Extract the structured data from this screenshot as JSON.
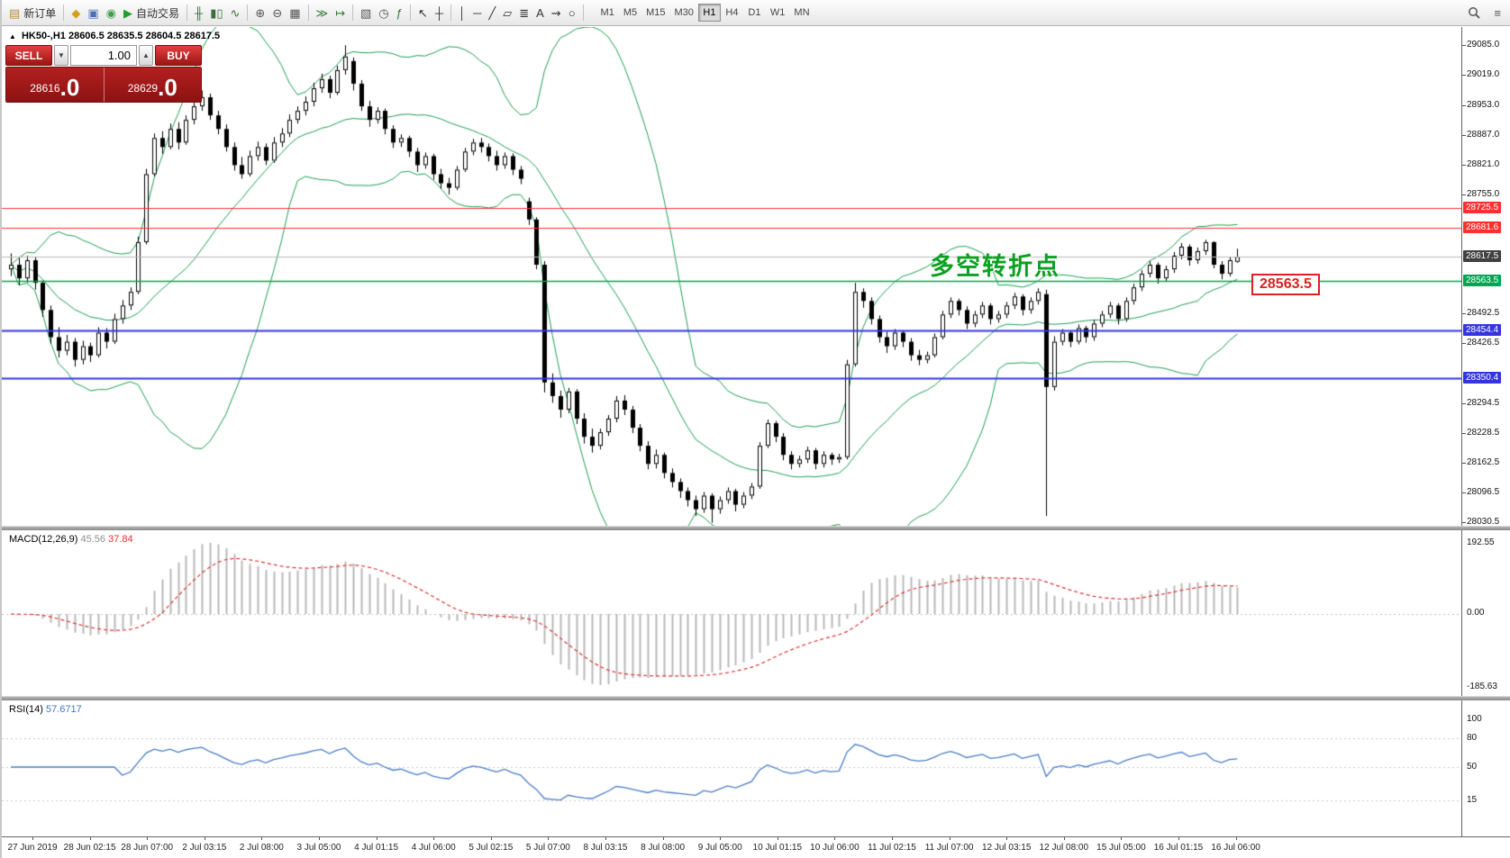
{
  "toolbar": {
    "items": [
      {
        "name": "new-order-button",
        "glyph": "▤",
        "glyph_color": "#b98a2f",
        "label": "新订单"
      },
      {
        "sep": true
      },
      {
        "name": "alerts-icon",
        "glyph": "◆",
        "glyph_color": "#d4a017"
      },
      {
        "name": "mailbox-icon",
        "glyph": "▣",
        "glyph_color": "#4a6fb5"
      },
      {
        "name": "community-icon",
        "glyph": "◉",
        "glyph_color": "#3f9e4d"
      },
      {
        "name": "autotrading-button",
        "glyph": "▶",
        "glyph_color": "#1f9e2e",
        "label": "自动交易"
      },
      {
        "sep": true
      },
      {
        "name": "bar-chart-style-icon",
        "glyph": "╫",
        "glyph_color": "#3a6f3a"
      },
      {
        "name": "candlestick-style-icon",
        "glyph": "▮▯",
        "glyph_color": "#3a6f3a"
      },
      {
        "name": "line-chart-style-icon",
        "glyph": "∿",
        "glyph_color": "#3a6f3a"
      },
      {
        "sep": true
      },
      {
        "name": "zoom-in-icon",
        "glyph": "⊕",
        "glyph_color": "#555555"
      },
      {
        "name": "zoom-out-icon",
        "glyph": "⊖",
        "glyph_color": "#555555"
      },
      {
        "name": "tile-windows-icon",
        "glyph": "▦",
        "glyph_color": "#555555"
      },
      {
        "sep": true
      },
      {
        "name": "auto-scroll-icon",
        "glyph": "≫",
        "glyph_color": "#2e7d32"
      },
      {
        "name": "chart-shift-icon",
        "glyph": "↦",
        "glyph_color": "#2e7d32"
      },
      {
        "sep": true
      },
      {
        "name": "new-chart-icon",
        "glyph": "▧",
        "glyph_color": "#555555"
      },
      {
        "name": "period-icon",
        "glyph": "◷",
        "glyph_color": "#555555"
      },
      {
        "name": "indicators-icon",
        "glyph": "ƒ",
        "glyph_color": "#2e7d32"
      },
      {
        "sep": true
      },
      {
        "name": "cursor-icon",
        "glyph": "↖",
        "glyph_color": "#333333"
      },
      {
        "name": "crosshair-icon",
        "glyph": "┼",
        "glyph_color": "#333333"
      },
      {
        "sep": true
      },
      {
        "name": "vertical-line-icon",
        "glyph": "│",
        "glyph_color": "#333333"
      },
      {
        "name": "horizontal-line-icon",
        "glyph": "─",
        "glyph_color": "#333333"
      },
      {
        "name": "trendline-icon",
        "glyph": "╱",
        "glyph_color": "#333333"
      },
      {
        "name": "channel-icon",
        "glyph": "▱",
        "glyph_color": "#333333"
      },
      {
        "name": "fibonacci-icon",
        "glyph": "≣",
        "glyph_color": "#333333"
      },
      {
        "name": "text-icon",
        "glyph": "A",
        "glyph_color": "#333333"
      },
      {
        "name": "arrows-icon",
        "glyph": "⇝",
        "glyph_color": "#333333"
      },
      {
        "name": "shapes-icon",
        "glyph": "○",
        "glyph_color": "#333333"
      },
      {
        "sep": true
      }
    ],
    "timeframes": [
      "M1",
      "M5",
      "M15",
      "M30",
      "H1",
      "H4",
      "D1",
      "W1",
      "MN"
    ],
    "active_timeframe": "H1",
    "menu_glyph": "≡"
  },
  "symbol_info": {
    "marker": "▲",
    "symbol": "HK50-,H1",
    "ohlc": "28606.5 28635.5 28604.5 28617.5"
  },
  "trade_panel": {
    "sell_label": "SELL",
    "buy_label": "BUY",
    "volume": "1.00",
    "down_glyph": "▼",
    "up_glyph": "▲",
    "sell_price": "28616",
    "sell_price_frac": ".0",
    "buy_price": "28629",
    "buy_price_frac": ".0"
  },
  "annotation": {
    "text": "多空转折点",
    "color": "#0aa121"
  },
  "price_tag": {
    "text": "28563.5",
    "color": "#e02020"
  },
  "macd_panel": {
    "label": "MACD(12,26,9)",
    "value_hist": "45.56",
    "value_signal": "37.84"
  },
  "rsi_panel": {
    "label": "RSI(14)",
    "value": "57.6717"
  },
  "chart_data": {
    "type": "candlestick",
    "symbol": "HK50-",
    "timeframe": "H1",
    "title": "HK50- Hong Kong 50 Index H1 chart with Bollinger Bands, MACD and RSI",
    "price_range": [
      28030.5,
      29085.0
    ],
    "ohlc": [
      [
        28590,
        28625,
        28575,
        28600
      ],
      [
        28600,
        28615,
        28555,
        28570
      ],
      [
        28570,
        28620,
        28560,
        28610
      ],
      [
        28610,
        28618,
        28545,
        28560
      ],
      [
        28560,
        28565,
        28485,
        28500
      ],
      [
        28500,
        28510,
        28425,
        28440
      ],
      [
        28440,
        28462,
        28395,
        28410
      ],
      [
        28410,
        28445,
        28400,
        28430
      ],
      [
        28430,
        28438,
        28375,
        28390
      ],
      [
        28390,
        28432,
        28380,
        28420
      ],
      [
        28420,
        28428,
        28385,
        28400
      ],
      [
        28400,
        28462,
        28395,
        28450
      ],
      [
        28450,
        28460,
        28415,
        28430
      ],
      [
        28430,
        28492,
        28425,
        28480
      ],
      [
        28480,
        28522,
        28470,
        28510
      ],
      [
        28510,
        28550,
        28500,
        28540
      ],
      [
        28540,
        28662,
        28535,
        28650
      ],
      [
        28650,
        28812,
        28645,
        28800
      ],
      [
        28800,
        28890,
        28795,
        28880
      ],
      [
        28880,
        28895,
        28845,
        28860
      ],
      [
        28860,
        28912,
        28855,
        28900
      ],
      [
        28900,
        28915,
        28855,
        28870
      ],
      [
        28870,
        28930,
        28865,
        28920
      ],
      [
        28920,
        28962,
        28910,
        28950
      ],
      [
        28950,
        28985,
        28940,
        28970
      ],
      [
        28970,
        28978,
        28920,
        28930
      ],
      [
        28930,
        28940,
        28888,
        28900
      ],
      [
        28900,
        28910,
        28850,
        28860
      ],
      [
        28860,
        28870,
        28808,
        28820
      ],
      [
        28820,
        28838,
        28790,
        28800
      ],
      [
        28800,
        28852,
        28795,
        28840
      ],
      [
        28840,
        28872,
        28830,
        28860
      ],
      [
        28860,
        28868,
        28820,
        28830
      ],
      [
        28830,
        28882,
        28825,
        28870
      ],
      [
        28870,
        28902,
        28860,
        28890
      ],
      [
        28890,
        28932,
        28882,
        28920
      ],
      [
        28920,
        28950,
        28912,
        28940
      ],
      [
        28940,
        28972,
        28930,
        28960
      ],
      [
        28960,
        29002,
        28950,
        28990
      ],
      [
        28990,
        29022,
        28980,
        29010
      ],
      [
        29010,
        29018,
        28968,
        28980
      ],
      [
        28980,
        29040,
        28975,
        29030
      ],
      [
        29030,
        29085,
        29020,
        29060
      ],
      [
        29050,
        29058,
        28985,
        29000
      ],
      [
        29000,
        29008,
        28940,
        28950
      ],
      [
        28950,
        28962,
        28905,
        28920
      ],
      [
        28920,
        28948,
        28912,
        28940
      ],
      [
        28940,
        28945,
        28888,
        28900
      ],
      [
        28900,
        28908,
        28858,
        28870
      ],
      [
        28870,
        28888,
        28860,
        28880
      ],
      [
        28880,
        28885,
        28838,
        28850
      ],
      [
        28850,
        28858,
        28805,
        28820
      ],
      [
        28820,
        28848,
        28812,
        28840
      ],
      [
        28840,
        28845,
        28788,
        28800
      ],
      [
        28800,
        28812,
        28768,
        28780
      ],
      [
        28780,
        28792,
        28755,
        28770
      ],
      [
        28770,
        28818,
        28765,
        28810
      ],
      [
        28810,
        28858,
        28805,
        28850
      ],
      [
        28850,
        28878,
        28842,
        28870
      ],
      [
        28870,
        28880,
        28848,
        28860
      ],
      [
        28860,
        28868,
        28828,
        28840
      ],
      [
        28840,
        28852,
        28808,
        28820
      ],
      [
        28820,
        28848,
        28812,
        28840
      ],
      [
        28840,
        28846,
        28798,
        28810
      ],
      [
        28810,
        28818,
        28778,
        28790
      ],
      [
        28740,
        28748,
        28688,
        28700
      ],
      [
        28700,
        28705,
        28590,
        28600
      ],
      [
        28600,
        28608,
        28318,
        28340
      ],
      [
        28340,
        28360,
        28295,
        28310
      ],
      [
        28310,
        28322,
        28262,
        28280
      ],
      [
        28280,
        28328,
        28272,
        28320
      ],
      [
        28320,
        28325,
        28248,
        28260
      ],
      [
        28260,
        28272,
        28205,
        28220
      ],
      [
        28220,
        28238,
        28185,
        28200
      ],
      [
        28200,
        28238,
        28192,
        28230
      ],
      [
        28230,
        28268,
        28222,
        28260
      ],
      [
        28260,
        28310,
        28252,
        28300
      ],
      [
        28300,
        28312,
        28268,
        28280
      ],
      [
        28280,
        28288,
        28228,
        28240
      ],
      [
        28240,
        28248,
        28188,
        28200
      ],
      [
        28200,
        28210,
        28148,
        28160
      ],
      [
        28160,
        28192,
        28150,
        28180
      ],
      [
        28180,
        28185,
        28128,
        28140
      ],
      [
        28140,
        28150,
        28108,
        28120
      ],
      [
        28120,
        28128,
        28085,
        28100
      ],
      [
        28100,
        28108,
        28066,
        28080
      ],
      [
        28080,
        28090,
        28045,
        28060
      ],
      [
        28060,
        28098,
        28052,
        28090
      ],
      [
        28090,
        28095,
        28030,
        28060
      ],
      [
        28060,
        28088,
        28050,
        28080
      ],
      [
        28080,
        28108,
        28072,
        28100
      ],
      [
        28100,
        28105,
        28055,
        28070
      ],
      [
        28070,
        28098,
        28062,
        28090
      ],
      [
        28090,
        28118,
        28082,
        28110
      ],
      [
        28110,
        28208,
        28105,
        28200
      ],
      [
        28200,
        28258,
        28195,
        28250
      ],
      [
        28250,
        28255,
        28208,
        28220
      ],
      [
        28220,
        28228,
        28168,
        28180
      ],
      [
        28180,
        28188,
        28148,
        28160
      ],
      [
        28160,
        28178,
        28152,
        28170
      ],
      [
        28170,
        28198,
        28162,
        28190
      ],
      [
        28190,
        28195,
        28148,
        28160
      ],
      [
        28160,
        28188,
        28152,
        28180
      ],
      [
        28180,
        28185,
        28158,
        28170
      ],
      [
        28170,
        28182,
        28162,
        28175
      ],
      [
        28175,
        28390,
        28170,
        28380
      ],
      [
        28380,
        28560,
        28375,
        28540
      ],
      [
        28540,
        28548,
        28505,
        28520
      ],
      [
        28520,
        28528,
        28468,
        28480
      ],
      [
        28480,
        28488,
        28428,
        28440
      ],
      [
        28440,
        28452,
        28405,
        28420
      ],
      [
        28420,
        28458,
        28412,
        28450
      ],
      [
        28450,
        28455,
        28418,
        28430
      ],
      [
        28430,
        28438,
        28388,
        28400
      ],
      [
        28400,
        28412,
        28378,
        28390
      ],
      [
        28390,
        28408,
        28382,
        28400
      ],
      [
        28400,
        28448,
        28395,
        28440
      ],
      [
        28440,
        28498,
        28435,
        28490
      ],
      [
        28490,
        28528,
        28482,
        28520
      ],
      [
        28520,
        28525,
        28488,
        28500
      ],
      [
        28500,
        28508,
        28458,
        28470
      ],
      [
        28470,
        28498,
        28462,
        28490
      ],
      [
        28490,
        28518,
        28482,
        28510
      ],
      [
        28510,
        28515,
        28468,
        28480
      ],
      [
        28480,
        28498,
        28472,
        28490
      ],
      [
        28490,
        28518,
        28482,
        28510
      ],
      [
        28510,
        28538,
        28502,
        28530
      ],
      [
        28530,
        28535,
        28488,
        28500
      ],
      [
        28500,
        28528,
        28492,
        28520
      ],
      [
        28520,
        28548,
        28512,
        28540
      ],
      [
        28535,
        28545,
        28045,
        28330
      ],
      [
        28330,
        28442,
        28322,
        28430
      ],
      [
        28430,
        28458,
        28422,
        28450
      ],
      [
        28450,
        28455,
        28418,
        28430
      ],
      [
        28430,
        28468,
        28424,
        28460
      ],
      [
        28460,
        28465,
        28428,
        28440
      ],
      [
        28440,
        28478,
        28432,
        28470
      ],
      [
        28470,
        28498,
        28462,
        28490
      ],
      [
        28490,
        28518,
        28482,
        28510
      ],
      [
        28510,
        28515,
        28468,
        28480
      ],
      [
        28480,
        28528,
        28474,
        28520
      ],
      [
        28520,
        28558,
        28512,
        28550
      ],
      [
        28550,
        28588,
        28542,
        28580
      ],
      [
        28580,
        28608,
        28572,
        28600
      ],
      [
        28600,
        28605,
        28558,
        28570
      ],
      [
        28570,
        28598,
        28562,
        28590
      ],
      [
        28590,
        28628,
        28582,
        28620
      ],
      [
        28620,
        28648,
        28612,
        28640
      ],
      [
        28640,
        28645,
        28598,
        28610
      ],
      [
        28610,
        28638,
        28602,
        28630
      ],
      [
        28630,
        28655,
        28622,
        28650
      ],
      [
        28650,
        28652,
        28592,
        28600
      ],
      [
        28600,
        28608,
        28568,
        28580
      ],
      [
        28580,
        28618,
        28574,
        28610
      ],
      [
        28606.5,
        28635.5,
        28604.5,
        28617.5
      ]
    ],
    "time_labels": [
      "27 Jun 2019",
      "28 Jun 02:15",
      "28 Jun 07:00",
      "2 Jul 03:15",
      "2 Jul 08:00",
      "3 Jul 05:00",
      "4 Jul 01:15",
      "4 Jul 06:00",
      "5 Jul 02:15",
      "5 Jul 07:00",
      "8 Jul 03:15",
      "8 Jul 08:00",
      "9 Jul 05:00",
      "10 Jul 01:15",
      "10 Jul 06:00",
      "11 Jul 02:15",
      "11 Jul 07:00",
      "12 Jul 03:15",
      "12 Jul 08:00",
      "15 Jul 05:00",
      "16 Jul 01:15",
      "16 Jul 06:00"
    ],
    "y_ticks": [
      {
        "t": "29085.0",
        "p": 29085
      },
      {
        "t": "29019.0",
        "p": 29019
      },
      {
        "t": "28953.0",
        "p": 28953
      },
      {
        "t": "28887.0",
        "p": 28887
      },
      {
        "t": "28821.0",
        "p": 28821
      },
      {
        "t": "28755.0",
        "p": 28755
      },
      {
        "t": "28492.5",
        "p": 28492.5
      },
      {
        "t": "28426.5",
        "p": 28426.5
      },
      {
        "t": "28294.5",
        "p": 28294.5
      },
      {
        "t": "28228.5",
        "p": 28228.5
      },
      {
        "t": "28162.5",
        "p": 28162.5
      },
      {
        "t": "28096.5",
        "p": 28096.5
      },
      {
        "t": "28030.5",
        "p": 28030.5
      }
    ],
    "price_badges": [
      {
        "t": "28725.5",
        "p": 28725.5,
        "bg": "#ff3030"
      },
      {
        "t": "28681.6",
        "p": 28681.6,
        "bg": "#ff3030"
      },
      {
        "t": "28617.5",
        "p": 28617.5,
        "bg": "#404040"
      },
      {
        "t": "28563.5",
        "p": 28563.5,
        "bg": "#00a651"
      },
      {
        "t": "28454.4",
        "p": 28454.4,
        "bg": "#3535e0"
      },
      {
        "t": "28350.4",
        "p": 28350.4,
        "bg": "#3535e0"
      }
    ],
    "levels": [
      {
        "p": 28725.5,
        "color": "#ff3030",
        "w": 1
      },
      {
        "p": 28681.6,
        "color": "#ff3030",
        "w": 1
      },
      {
        "p": 28563.5,
        "color": "#00a651",
        "w": 1.5
      },
      {
        "p": 28454.4,
        "color": "#3535e0",
        "w": 2
      },
      {
        "p": 28350.4,
        "color": "#3535e0",
        "w": 2
      }
    ],
    "bid_line": {
      "p": 28617.5,
      "color": "#b8b8b8"
    },
    "bollinger": {
      "period": 20,
      "deviation": 2,
      "color": "#1e9e50"
    },
    "macd": {
      "fast": 12,
      "slow": 26,
      "signal": 9,
      "hist_color": "#b8b8b8",
      "signal_color": "#e03030",
      "axis": [
        {
          "t": "192.55",
          "v": 192.55
        },
        {
          "t": "0.00",
          "v": 0
        },
        {
          "t": "-185.63",
          "v": -185.63
        }
      ]
    },
    "rsi": {
      "period": 14,
      "color": "#4a7dc8",
      "axis": [
        {
          "t": "100",
          "v": 100
        },
        {
          "t": "80",
          "v": 80
        },
        {
          "t": "50",
          "v": 50
        },
        {
          "t": "15",
          "v": 15
        }
      ],
      "levels": [
        80,
        50,
        15
      ]
    }
  }
}
